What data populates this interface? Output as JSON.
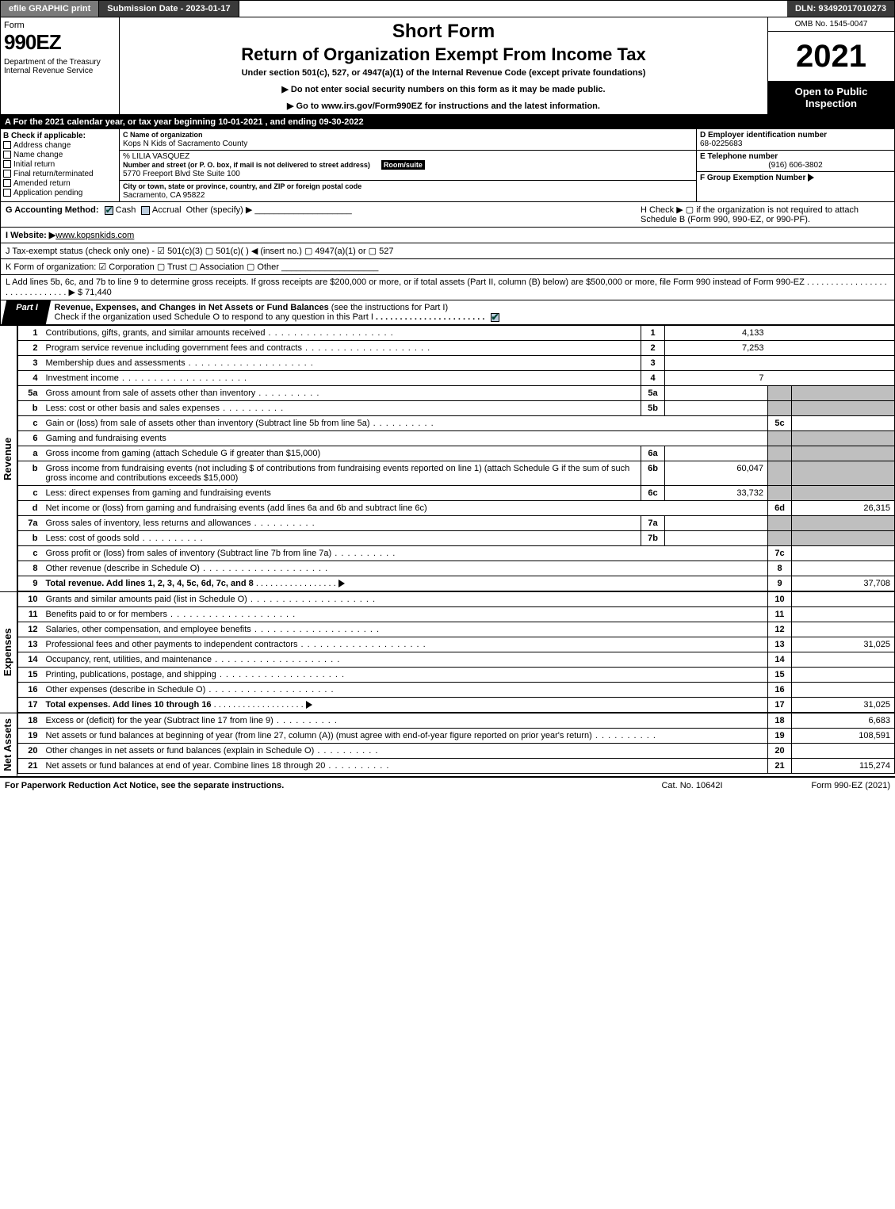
{
  "topbar": {
    "efile": "efile GRAPHIC print",
    "submission": "Submission Date - 2023-01-17",
    "dln": "DLN: 93492017010273"
  },
  "header": {
    "form_word": "Form",
    "form_no": "990EZ",
    "dept": "Department of the Treasury\nInternal Revenue Service",
    "short": "Short Form",
    "ret": "Return of Organization Exempt From Income Tax",
    "sub": "Under section 501(c), 527, or 4947(a)(1) of the Internal Revenue Code (except private foundations)",
    "note1": "▶ Do not enter social security numbers on this form as it may be made public.",
    "note2": "▶ Go to www.irs.gov/Form990EZ for instructions and the latest information.",
    "omb": "OMB No. 1545-0047",
    "year": "2021",
    "open": "Open to Public Inspection"
  },
  "a": {
    "text": "A  For the 2021 calendar year, or tax year beginning 10-01-2021 , and ending 09-30-2022"
  },
  "b": {
    "title": "B  Check if applicable:",
    "opts": [
      "Address change",
      "Name change",
      "Initial return",
      "Final return/terminated",
      "Amended return",
      "Application pending"
    ]
  },
  "c": {
    "name_lbl": "C Name of organization",
    "name": "Kops N Kids of Sacramento County",
    "care_lbl": "% LILIA VASQUEZ",
    "street_lbl": "Number and street (or P. O. box, if mail is not delivered to street address)",
    "room_lbl": "Room/suite",
    "street": "5770 Freeport Blvd Ste Suite 100",
    "city_lbl": "City or town, state or province, country, and ZIP or foreign postal code",
    "city": "Sacramento, CA  95822"
  },
  "d": {
    "ein_lbl": "D Employer identification number",
    "ein": "68-0225683",
    "tel_lbl": "E Telephone number",
    "tel": "(916) 606-3802",
    "grp_lbl": "F Group Exemption Number",
    "grp_arrow": "▶"
  },
  "g": {
    "label": "G Accounting Method:",
    "cash": "Cash",
    "accrual": "Accrual",
    "other": "Other (specify) ▶"
  },
  "h": {
    "text": "H  Check ▶  ▢  if the organization is not required to attach Schedule B (Form 990, 990-EZ, or 990-PF)."
  },
  "i": {
    "label": "I Website: ▶",
    "val": "www.kopsnkids.com"
  },
  "j": {
    "text": "J Tax-exempt status (check only one) - ☑ 501(c)(3) ▢ 501(c)(  ) ◀ (insert no.) ▢ 4947(a)(1) or ▢ 527"
  },
  "k": {
    "text": "K Form of organization:  ☑ Corporation  ▢ Trust  ▢ Association  ▢ Other"
  },
  "l": {
    "text": "L Add lines 5b, 6c, and 7b to line 9 to determine gross receipts. If gross receipts are $200,000 or more, or if total assets (Part II, column (B) below) are $500,000 or more, file Form 990 instead of Form 990-EZ .  .  .  .  .  .  .  .  .  .  .  .  .  .  .  .  .  .  .  .  .  .  .  .  .  .  .  .  .  .  ▶ $",
    "amount": "71,440"
  },
  "part1": {
    "tab": "Part I",
    "title": "Revenue, Expenses, and Changes in Net Assets or Fund Balances",
    "inst": " (see the instructions for Part I)",
    "check": "Check if the organization used Schedule O to respond to any question in this Part I"
  },
  "sections": {
    "revenue": "Revenue",
    "expenses": "Expenses",
    "netassets": "Net Assets"
  },
  "lines": {
    "l1": {
      "n": "1",
      "t": "Contributions, gifts, grants, and similar amounts received",
      "ln": "1",
      "amt": "4,133"
    },
    "l2": {
      "n": "2",
      "t": "Program service revenue including government fees and contracts",
      "ln": "2",
      "amt": "7,253"
    },
    "l3": {
      "n": "3",
      "t": "Membership dues and assessments",
      "ln": "3",
      "amt": ""
    },
    "l4": {
      "n": "4",
      "t": "Investment income",
      "ln": "4",
      "amt": "7"
    },
    "l5a": {
      "n": "5a",
      "t": "Gross amount from sale of assets other than inventory",
      "ml": "5a",
      "mv": ""
    },
    "l5b": {
      "n": "b",
      "t": "Less: cost or other basis and sales expenses",
      "ml": "5b",
      "mv": ""
    },
    "l5c": {
      "n": "c",
      "t": "Gain or (loss) from sale of assets other than inventory (Subtract line 5b from line 5a)",
      "ln": "5c",
      "amt": ""
    },
    "l6": {
      "n": "6",
      "t": "Gaming and fundraising events"
    },
    "l6a": {
      "n": "a",
      "t": "Gross income from gaming (attach Schedule G if greater than $15,000)",
      "ml": "6a",
      "mv": ""
    },
    "l6b": {
      "n": "b",
      "t": "Gross income from fundraising events (not including $                       of contributions from fundraising events reported on line 1) (attach Schedule G if the sum of such gross income and contributions exceeds $15,000)",
      "ml": "6b",
      "mv": "60,047"
    },
    "l6c": {
      "n": "c",
      "t": "Less: direct expenses from gaming and fundraising events",
      "ml": "6c",
      "mv": "33,732"
    },
    "l6d": {
      "n": "d",
      "t": "Net income or (loss) from gaming and fundraising events (add lines 6a and 6b and subtract line 6c)",
      "ln": "6d",
      "amt": "26,315"
    },
    "l7a": {
      "n": "7a",
      "t": "Gross sales of inventory, less returns and allowances",
      "ml": "7a",
      "mv": ""
    },
    "l7b": {
      "n": "b",
      "t": "Less: cost of goods sold",
      "ml": "7b",
      "mv": ""
    },
    "l7c": {
      "n": "c",
      "t": "Gross profit or (loss) from sales of inventory (Subtract line 7b from line 7a)",
      "ln": "7c",
      "amt": ""
    },
    "l8": {
      "n": "8",
      "t": "Other revenue (describe in Schedule O)",
      "ln": "8",
      "amt": ""
    },
    "l9": {
      "n": "9",
      "t": "Total revenue. Add lines 1, 2, 3, 4, 5c, 6d, 7c, and 8",
      "ln": "9",
      "amt": "37,708"
    },
    "l10": {
      "n": "10",
      "t": "Grants and similar amounts paid (list in Schedule O)",
      "ln": "10",
      "amt": ""
    },
    "l11": {
      "n": "11",
      "t": "Benefits paid to or for members",
      "ln": "11",
      "amt": ""
    },
    "l12": {
      "n": "12",
      "t": "Salaries, other compensation, and employee benefits",
      "ln": "12",
      "amt": ""
    },
    "l13": {
      "n": "13",
      "t": "Professional fees and other payments to independent contractors",
      "ln": "13",
      "amt": "31,025"
    },
    "l14": {
      "n": "14",
      "t": "Occupancy, rent, utilities, and maintenance",
      "ln": "14",
      "amt": ""
    },
    "l15": {
      "n": "15",
      "t": "Printing, publications, postage, and shipping",
      "ln": "15",
      "amt": ""
    },
    "l16": {
      "n": "16",
      "t": "Other expenses (describe in Schedule O)",
      "ln": "16",
      "amt": ""
    },
    "l17": {
      "n": "17",
      "t": "Total expenses. Add lines 10 through 16",
      "ln": "17",
      "amt": "31,025"
    },
    "l18": {
      "n": "18",
      "t": "Excess or (deficit) for the year (Subtract line 17 from line 9)",
      "ln": "18",
      "amt": "6,683"
    },
    "l19": {
      "n": "19",
      "t": "Net assets or fund balances at beginning of year (from line 27, column (A)) (must agree with end-of-year figure reported on prior year's return)",
      "ln": "19",
      "amt": "108,591"
    },
    "l20": {
      "n": "20",
      "t": "Other changes in net assets or fund balances (explain in Schedule O)",
      "ln": "20",
      "amt": ""
    },
    "l21": {
      "n": "21",
      "t": "Net assets or fund balances at end of year. Combine lines 18 through 20",
      "ln": "21",
      "amt": "115,274"
    }
  },
  "footer": {
    "l": "For Paperwork Reduction Act Notice, see the separate instructions.",
    "m": "Cat. No. 10642I",
    "r": "Form 990-EZ (2021)"
  }
}
